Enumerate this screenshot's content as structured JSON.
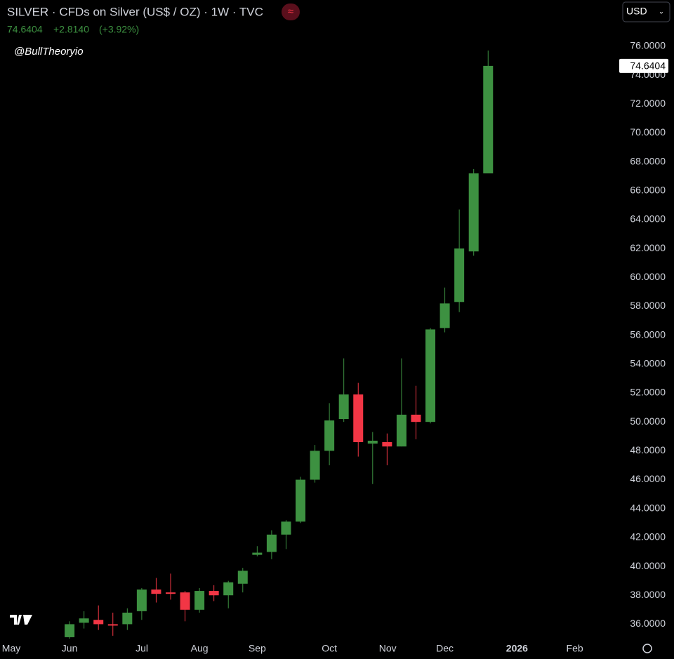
{
  "chart_data": {
    "type": "candlestick",
    "title": "SILVER · CFDs on Silver (US$ / OZ) · 1W · TVC",
    "last_price": "74.6404",
    "change": "+2.8140",
    "change_pct": "(+3.92%)",
    "watermark": "@BullTheoryio",
    "currency": "USD",
    "up_color": "#3d9141",
    "down_color": "#f23645",
    "categories": [
      null,
      null,
      null,
      null,
      null,
      null,
      null,
      null,
      null,
      null,
      null,
      null,
      null,
      null,
      null,
      null,
      null,
      null,
      null,
      null,
      null,
      null,
      null,
      null,
      null,
      null,
      null,
      null,
      null,
      null
    ],
    "open": [
      35.1,
      36.1,
      36.3,
      36.0,
      36.0,
      36.9,
      38.4,
      38.2,
      38.2,
      37.0,
      38.3,
      38.0,
      38.8,
      40.8,
      41.0,
      42.2,
      43.1,
      46.0,
      48.0,
      50.2,
      51.9,
      48.5,
      48.6,
      48.3,
      50.5,
      50.0,
      56.5,
      58.3,
      61.8,
      67.2
    ],
    "high": [
      36.2,
      36.9,
      37.3,
      36.8,
      37.1,
      38.5,
      39.2,
      39.5,
      38.3,
      38.5,
      38.7,
      39.0,
      39.9,
      41.4,
      42.5,
      43.2,
      46.2,
      48.4,
      51.3,
      54.4,
      52.7,
      49.3,
      49.2,
      54.4,
      52.5,
      56.5,
      59.3,
      64.7,
      67.5,
      75.7
    ],
    "low": [
      35.0,
      35.7,
      35.6,
      35.2,
      35.6,
      36.3,
      37.5,
      37.7,
      36.2,
      36.8,
      37.6,
      37.1,
      38.2,
      40.7,
      40.5,
      41.2,
      43.0,
      45.8,
      47.0,
      50.0,
      47.6,
      45.7,
      47.0,
      48.3,
      48.8,
      49.9,
      56.2,
      57.6,
      61.5,
      67.2
    ],
    "close": [
      36.0,
      36.4,
      36.0,
      35.95,
      36.8,
      38.4,
      38.1,
      38.1,
      37.0,
      38.3,
      38.0,
      38.9,
      39.7,
      40.95,
      42.2,
      43.1,
      46.0,
      48.0,
      50.1,
      51.9,
      48.6,
      48.7,
      48.3,
      50.5,
      50.0,
      56.4,
      58.2,
      62.0,
      67.2,
      74.64
    ],
    "xlim": [
      -4.82,
      37.5
    ],
    "xticks": [
      {
        "value": -4.04,
        "label": "May"
      },
      {
        "value": 0,
        "label": "Jun"
      },
      {
        "value": 5.01,
        "label": "Jul"
      },
      {
        "value": 9.0,
        "label": "Aug"
      },
      {
        "value": 13.0,
        "label": "Sep"
      },
      {
        "value": 18.0,
        "label": "Oct"
      },
      {
        "value": 22.04,
        "label": "Nov"
      },
      {
        "value": 26.0,
        "label": "Dec"
      },
      {
        "value": 31.0,
        "label": "2026"
      },
      {
        "value": 35.0,
        "label": "Feb"
      }
    ],
    "ylim": [
      35,
      79.2
    ],
    "yticks": [
      {
        "value": 36,
        "label": "36.0000"
      },
      {
        "value": 38,
        "label": "38.0000"
      },
      {
        "value": 40,
        "label": "40.0000"
      },
      {
        "value": 42,
        "label": "42.0000"
      },
      {
        "value": 44,
        "label": "44.0000"
      },
      {
        "value": 46,
        "label": "46.0000"
      },
      {
        "value": 48,
        "label": "48.0000"
      },
      {
        "value": 50,
        "label": "50.0000"
      },
      {
        "value": 52,
        "label": "52.0000"
      },
      {
        "value": 54,
        "label": "54.0000"
      },
      {
        "value": 56,
        "label": "56.0000"
      },
      {
        "value": 58,
        "label": "58.0000"
      },
      {
        "value": 60,
        "label": "60.0000"
      },
      {
        "value": 62,
        "label": "62.0000"
      },
      {
        "value": 64,
        "label": "64.0000"
      },
      {
        "value": 66,
        "label": "66.0000"
      },
      {
        "value": 68,
        "label": "68.0000"
      },
      {
        "value": 70,
        "label": "70.0000"
      },
      {
        "value": 72,
        "label": "72.0000"
      },
      {
        "value": 74,
        "label": "74.0000"
      },
      {
        "value": 76,
        "label": "76.0000"
      }
    ]
  }
}
